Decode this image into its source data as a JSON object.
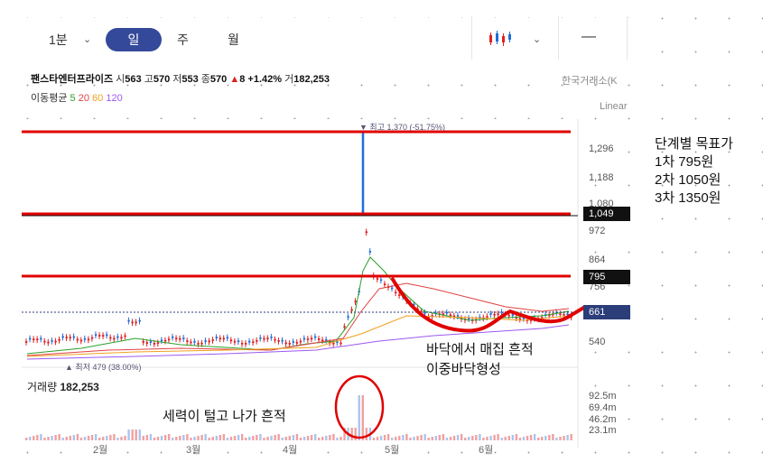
{
  "toolbar": {
    "interval": "1분",
    "tabs": [
      "일",
      "주",
      "월"
    ],
    "active_tab": "일",
    "chart_style_icon": "candlestick-icon",
    "line_tool": "—"
  },
  "stock": {
    "name": "팬스타엔터프라이즈",
    "open_label": "시",
    "open": "563",
    "high_label": "고",
    "high": "570",
    "low_label": "저",
    "low": "553",
    "close_label": "종",
    "close": "570",
    "change_arrow": "▲",
    "change": "8",
    "change_pct": "+1.42%",
    "volume_label": "거",
    "volume": "182,253",
    "exchange": "한국거래소(K",
    "scale": "Linear"
  },
  "ma": {
    "label": "이동평균",
    "periods": [
      "5",
      "20",
      "60",
      "120"
    ],
    "colors": [
      "#2aa02a",
      "#e04040",
      "#f0a020",
      "#9b59f0"
    ]
  },
  "annotations": {
    "peak": "▼ 최고 1,370 (-51.75%)",
    "low": "▲ 최저 479 (38.00%)",
    "target_title": "단계별 목표가",
    "target_1": "1차 795원",
    "target_2": "2차 1050원",
    "target_3": "3차 1350원",
    "bottom_note_1": "바닥에서 매집 흔적",
    "bottom_note_2": "이중바닥형성",
    "volume_note": "세력이 털고 나가 흔적"
  },
  "axis": {
    "y_ticks": [
      "1,296",
      "1,188",
      "1,080",
      "972",
      "864",
      "756",
      "540"
    ],
    "tag_1049": "1,049",
    "tag_795": "795",
    "tag_661": "661",
    "x_ticks": [
      "2월",
      "3월",
      "4월",
      "5월",
      "6월"
    ],
    "vol_ticks": [
      "92.5m",
      "69.4m",
      "46.2m",
      "23.1m"
    ]
  },
  "volume_panel": {
    "label": "거래량",
    "value": "182,253"
  },
  "colors": {
    "up": "#e02020",
    "down": "#1f6fd8",
    "target_line": "#e00000",
    "tab_active": "#34499a"
  },
  "chart_data": {
    "type": "candlestick",
    "y_range": [
      479,
      1370
    ],
    "peak": 1370,
    "low": 479,
    "target_levels": [
      795,
      1050,
      1350
    ],
    "last_close": 661,
    "x": [
      "2월",
      "3월",
      "4월",
      "5월",
      "6월"
    ]
  }
}
